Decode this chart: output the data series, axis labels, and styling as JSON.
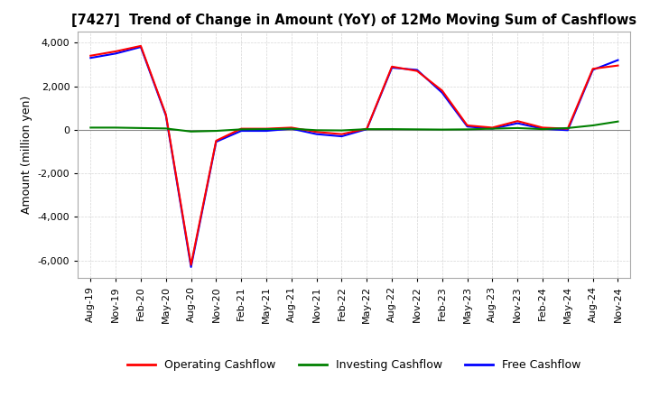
{
  "title": "[7427]  Trend of Change in Amount (YoY) of 12Mo Moving Sum of Cashflows",
  "ylabel": "Amount (million yen)",
  "ylim": [
    -6800,
    4500
  ],
  "yticks": [
    -6000,
    -4000,
    -2000,
    0,
    2000,
    4000
  ],
  "background_color": "#ffffff",
  "plot_bg_color": "#ffffff",
  "grid_color": "#cccccc",
  "xtick_labels": [
    "Aug-19",
    "Nov-19",
    "Feb-20",
    "May-20",
    "Aug-20",
    "Nov-20",
    "Feb-21",
    "May-21",
    "Aug-21",
    "Nov-21",
    "Feb-22",
    "May-22",
    "Aug-22",
    "Nov-22",
    "Feb-23",
    "May-23",
    "Aug-23",
    "Nov-23",
    "Feb-24",
    "May-24",
    "Aug-24",
    "Nov-24"
  ],
  "series": {
    "operating": {
      "color": "#ff0000",
      "label": "Operating Cashflow",
      "values": [
        3400,
        3600,
        3850,
        700,
        -6200,
        -500,
        50,
        50,
        100,
        -100,
        -200,
        50,
        2900,
        2700,
        1800,
        200,
        100,
        400,
        100,
        50,
        2800,
        2950
      ]
    },
    "investing": {
      "color": "#008000",
      "label": "Investing Cashflow",
      "values": [
        100,
        100,
        80,
        60,
        -80,
        -50,
        20,
        30,
        50,
        -20,
        -30,
        30,
        30,
        20,
        10,
        20,
        50,
        80,
        30,
        80,
        200,
        380
      ]
    },
    "free": {
      "color": "#0000ff",
      "label": "Free Cashflow",
      "values": [
        3300,
        3500,
        3800,
        650,
        -6300,
        -550,
        -50,
        -50,
        50,
        -200,
        -300,
        30,
        2850,
        2750,
        1700,
        150,
        50,
        300,
        50,
        -20,
        2750,
        3200
      ]
    }
  },
  "legend_items": [
    {
      "label": "Operating Cashflow",
      "color": "#ff0000"
    },
    {
      "label": "Investing Cashflow",
      "color": "#008000"
    },
    {
      "label": "Free Cashflow",
      "color": "#0000ff"
    }
  ]
}
